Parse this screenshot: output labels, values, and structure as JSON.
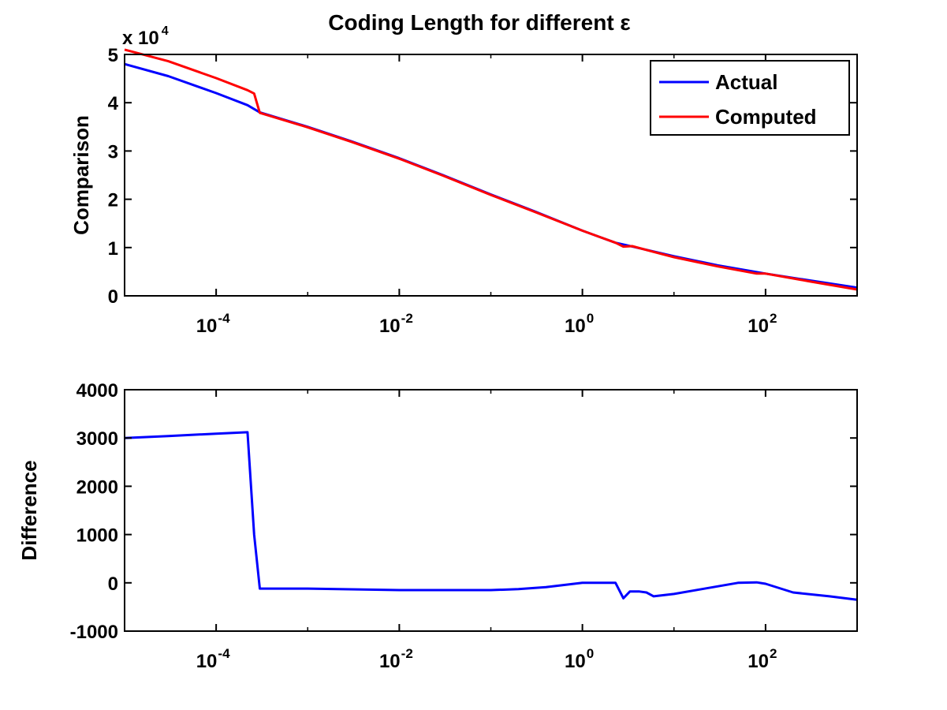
{
  "chart_data": [
    {
      "type": "line",
      "title": "Coding Length for different ε",
      "xlabel": "",
      "ylabel": "Comparison",
      "xscale": "log",
      "xlim": [
        1e-05,
        1000
      ],
      "ylim": [
        0,
        50000
      ],
      "y_exponent_label": "x 10",
      "y_exponent_power": "4",
      "x_ticks": [
        0.0001,
        0.01,
        1,
        100
      ],
      "x_tick_bases": [
        "10",
        "10",
        "10",
        "10"
      ],
      "x_tick_exponents": [
        "-4",
        "-2",
        "0",
        "2"
      ],
      "y_ticks": [
        0,
        10000,
        20000,
        30000,
        40000,
        50000
      ],
      "y_tick_labels": [
        "0",
        "1",
        "2",
        "3",
        "4",
        "5"
      ],
      "grid": false,
      "legend_position": "top-right",
      "series": [
        {
          "name": "Actual",
          "color": "#0000ff",
          "x": [
            1e-05,
            3e-05,
            0.0001,
            0.00022,
            0.0003,
            0.001,
            0.003,
            0.01,
            0.03,
            0.1,
            0.3,
            1,
            2.3,
            3,
            10,
            30,
            100,
            300,
            1000
          ],
          "y": [
            48000,
            45500,
            42000,
            39500,
            38000,
            35000,
            32000,
            28500,
            25000,
            21000,
            17500,
            13500,
            11000,
            10500,
            8200,
            6300,
            4600,
            3200,
            1700
          ]
        },
        {
          "name": "Computed",
          "color": "#ff0000",
          "x": [
            1e-05,
            3e-05,
            0.0001,
            0.00022,
            0.00026,
            0.0003,
            0.001,
            0.003,
            0.01,
            0.03,
            0.1,
            0.3,
            1,
            2.3,
            2.8,
            3.5,
            6,
            10,
            30,
            80,
            100,
            300,
            1000
          ],
          "y": [
            51000,
            48600,
            45100,
            42600,
            41900,
            37900,
            34900,
            31900,
            28400,
            24900,
            20900,
            17400,
            13500,
            11000,
            10200,
            10300,
            9100,
            8000,
            6100,
            4600,
            4600,
            3000,
            1300
          ]
        }
      ]
    },
    {
      "type": "line",
      "title": "",
      "xlabel": "",
      "ylabel": "Difference",
      "xscale": "log",
      "xlim": [
        1e-05,
        1000
      ],
      "ylim": [
        -1000,
        4000
      ],
      "x_ticks": [
        0.0001,
        0.01,
        1,
        100
      ],
      "x_tick_bases": [
        "10",
        "10",
        "10",
        "10"
      ],
      "x_tick_exponents": [
        "-4",
        "-2",
        "0",
        "2"
      ],
      "y_ticks": [
        -1000,
        0,
        1000,
        2000,
        3000,
        4000
      ],
      "y_tick_labels": [
        "-1000",
        "0",
        "1000",
        "2000",
        "3000",
        "4000"
      ],
      "grid": false,
      "series": [
        {
          "name": "",
          "color": "#0000ff",
          "x": [
            1e-05,
            3e-05,
            0.0001,
            0.00022,
            0.00026,
            0.0003,
            0.001,
            0.01,
            0.1,
            0.2,
            0.4,
            1,
            2.3,
            2.8,
            3.3,
            4.2,
            5,
            6,
            10,
            20,
            50,
            80,
            100,
            200,
            500,
            1000
          ],
          "y": [
            3000,
            3040,
            3090,
            3120,
            1000,
            -120,
            -120,
            -150,
            -150,
            -130,
            -90,
            0,
            0,
            -320,
            -180,
            -180,
            -200,
            -280,
            -230,
            -130,
            0,
            10,
            -20,
            -200,
            -280,
            -350
          ]
        }
      ]
    }
  ]
}
